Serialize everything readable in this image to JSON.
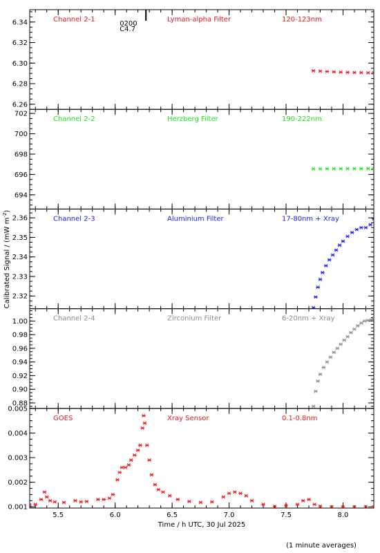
{
  "figure": {
    "ylabel": "Calibrated Signal / (mW m",
    "ylabel_sup": "-2",
    "ylabel_close": ")",
    "xlabel": "Time / h UTC, 30 Jul 2025",
    "footnote": "(1 minute averages)",
    "marker_label_top": "0200",
    "marker_label_bottom": "C4.7",
    "xlim": [
      5.25,
      8.27
    ],
    "xticks": [
      "5.5",
      "6.0",
      "6.5",
      "7.0",
      "7.5",
      "8.0"
    ],
    "xtick_values": [
      5.5,
      6.0,
      6.5,
      7.0,
      7.5,
      8.0
    ],
    "marker_time": 6.27
  },
  "chart_data": [
    {
      "type": "scatter",
      "channel": "Channel 2-1",
      "filter": "Lyman-alpha Filter",
      "band": "120-123nm",
      "color": "#e8181e",
      "ylim": [
        6.255,
        6.352
      ],
      "yticks": [
        "6.26",
        "6.28",
        "6.30",
        "6.32",
        "6.34"
      ],
      "ytick_values": [
        6.26,
        6.28,
        6.3,
        6.32,
        6.34
      ],
      "x": [
        7.74,
        7.8,
        7.86,
        7.92,
        7.98,
        8.04,
        8.1,
        8.16,
        8.22,
        8.27
      ],
      "y": [
        6.2925,
        6.2922,
        6.2918,
        6.2915,
        6.2912,
        6.291,
        6.2908,
        6.2907,
        6.2906,
        6.2905
      ]
    },
    {
      "type": "scatter",
      "channel": "Channel 2-2",
      "filter": "Herzberg Filter",
      "band": "190-222nm",
      "color": "#1ee21e",
      "ylim": [
        692.6,
        702.4
      ],
      "yticks": [
        "694",
        "696",
        "698",
        "700",
        "702"
      ],
      "ytick_values": [
        694,
        696,
        698,
        700,
        702
      ],
      "x": [
        7.74,
        7.8,
        7.86,
        7.92,
        7.98,
        8.04,
        8.1,
        8.16,
        8.22,
        8.27
      ],
      "y": [
        696.55,
        696.55,
        696.56,
        696.56,
        696.56,
        696.57,
        696.57,
        696.57,
        696.58,
        696.58
      ]
    },
    {
      "type": "scatter",
      "channel": "Channel 2-3",
      "filter": "Aluminium Filter",
      "band": "17-80nm + Xray",
      "color": "#1e1ee8",
      "ylim": [
        2.3135,
        2.3645
      ],
      "yticks": [
        "2.32",
        "2.33",
        "2.34",
        "2.35",
        "2.36"
      ],
      "ytick_values": [
        2.32,
        2.33,
        2.34,
        2.35,
        2.36
      ],
      "x": [
        7.74,
        7.76,
        7.78,
        7.8,
        7.82,
        7.85,
        7.88,
        7.91,
        7.94,
        7.97,
        8.0,
        8.04,
        8.08,
        8.12,
        8.16,
        8.2,
        8.24,
        8.27
      ],
      "y": [
        2.314,
        2.3195,
        2.3245,
        2.3285,
        2.332,
        2.3355,
        2.3385,
        2.341,
        2.3435,
        2.346,
        2.348,
        2.3505,
        2.3525,
        2.354,
        2.355,
        2.355,
        2.3565,
        2.3595
      ]
    },
    {
      "type": "scatter",
      "channel": "Channel 2-4",
      "filter": "Zirconium Filter",
      "band": "6-20nm + Xray",
      "color": "#8c8c8c",
      "ylim": [
        0.872,
        1.018
      ],
      "yticks": [
        "0.88",
        "0.90",
        "0.92",
        "0.94",
        "0.96",
        "0.98",
        "1.00"
      ],
      "ytick_values": [
        0.88,
        0.9,
        0.92,
        0.94,
        0.96,
        0.98,
        1.0
      ],
      "x": [
        7.74,
        7.76,
        7.78,
        7.8,
        7.83,
        7.86,
        7.89,
        7.92,
        7.95,
        7.98,
        8.01,
        8.04,
        8.07,
        8.1,
        8.13,
        8.16,
        8.19,
        8.22,
        8.25,
        8.27
      ],
      "y": [
        0.875,
        0.897,
        0.912,
        0.922,
        0.932,
        0.94,
        0.947,
        0.954,
        0.96,
        0.966,
        0.972,
        0.977,
        0.983,
        0.988,
        0.993,
        0.997,
        1.0,
        1.001,
        1.002,
        1.004
      ]
    },
    {
      "type": "scatter",
      "channel": "GOES",
      "filter": "Xray Sensor",
      "band": "0.1-0.8nm",
      "color": "#e8181e",
      "ylim": [
        0.00095,
        0.005
      ],
      "yticks": [
        "0.001",
        "0.002",
        "0.003",
        "0.004",
        "0.005"
      ],
      "ytick_values": [
        0.001,
        0.002,
        0.003,
        0.004,
        0.005
      ],
      "x": [
        5.25,
        5.3,
        5.35,
        5.38,
        5.4,
        5.43,
        5.47,
        5.55,
        5.65,
        5.7,
        5.75,
        5.85,
        5.9,
        5.95,
        5.98,
        6.02,
        6.04,
        6.06,
        6.09,
        6.12,
        6.14,
        6.17,
        6.2,
        6.22,
        6.24,
        6.25,
        6.26,
        6.28,
        6.3,
        6.32,
        6.35,
        6.38,
        6.42,
        6.48,
        6.55,
        6.65,
        6.75,
        6.85,
        6.95,
        7.0,
        7.05,
        7.1,
        7.15,
        7.2,
        7.3,
        7.4,
        7.5,
        7.6,
        7.65,
        7.7,
        7.75,
        7.8,
        7.9,
        8.0,
        8.1,
        8.2,
        8.27
      ],
      "y": [
        0.00108,
        0.0011,
        0.0013,
        0.0016,
        0.0014,
        0.00125,
        0.0012,
        0.00118,
        0.00125,
        0.0012,
        0.00122,
        0.0013,
        0.0013,
        0.00135,
        0.0015,
        0.0021,
        0.0024,
        0.0026,
        0.0026,
        0.0027,
        0.0029,
        0.0031,
        0.0033,
        0.0035,
        0.0042,
        0.0047,
        0.0044,
        0.0035,
        0.0029,
        0.0023,
        0.0019,
        0.0017,
        0.0016,
        0.00145,
        0.0013,
        0.00122,
        0.00118,
        0.0012,
        0.0014,
        0.00155,
        0.0016,
        0.00155,
        0.00145,
        0.00125,
        0.0011,
        0.00102,
        0.00105,
        0.0011,
        0.00125,
        0.0013,
        0.0011,
        0.00103,
        0.001,
        0.001,
        0.001,
        0.001,
        0.001
      ]
    }
  ]
}
